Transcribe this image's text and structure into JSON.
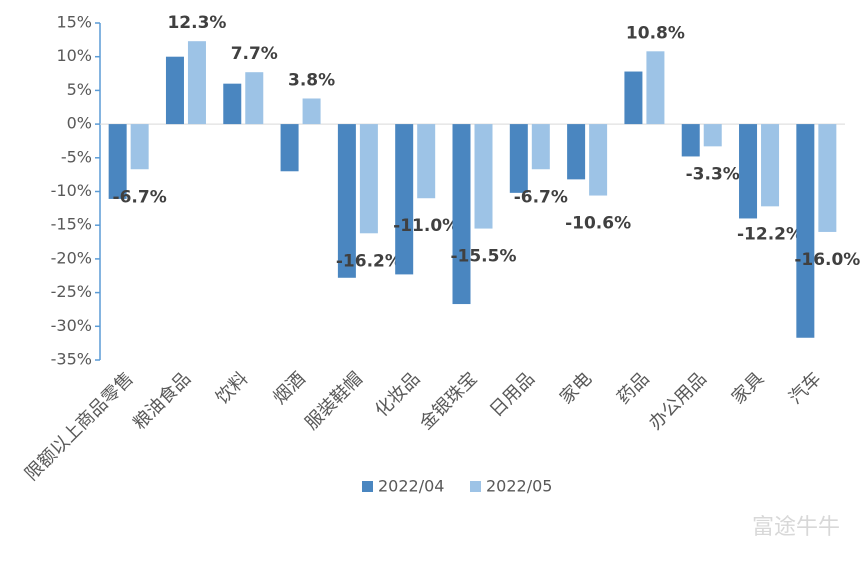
{
  "chart_data": {
    "type": "bar",
    "categories": [
      "限额以上商品零售",
      "粮油食品",
      "饮料",
      "烟酒",
      "服装鞋帽",
      "化妆品",
      "金银珠宝",
      "日用品",
      "家电",
      "药品",
      "办公用品",
      "家具",
      "汽车"
    ],
    "series": [
      {
        "name": "2022/04",
        "color": "#4a86c0",
        "values": [
          -11.1,
          10.0,
          6.0,
          -7.0,
          -22.8,
          -22.3,
          -26.7,
          -10.2,
          -8.2,
          7.8,
          -4.8,
          -14.0,
          -31.7
        ]
      },
      {
        "name": "2022/05",
        "color": "#9dc3e6",
        "values": [
          -6.7,
          12.3,
          7.7,
          3.8,
          -16.2,
          -11.0,
          -15.5,
          -6.7,
          -10.6,
          10.8,
          -3.3,
          -12.2,
          -16.0
        ],
        "value_labels": [
          "-6.7%",
          "12.3%",
          "7.7%",
          "3.8%",
          "-16.2%",
          "-11.0%",
          "-15.5%",
          "-6.7%",
          "-10.6%",
          "10.8%",
          "-3.3%",
          "-12.2%",
          "-16.0%"
        ]
      }
    ],
    "ylim": [
      -35,
      15
    ],
    "yticks": [
      {
        "value": 15,
        "label": "15%"
      },
      {
        "value": 10,
        "label": "10%"
      },
      {
        "value": 5,
        "label": "5%"
      },
      {
        "value": 0,
        "label": "0%"
      },
      {
        "value": -5,
        "label": "-5%"
      },
      {
        "value": -10,
        "label": "-10%"
      },
      {
        "value": -15,
        "label": "-15%"
      },
      {
        "value": -20,
        "label": "-20%"
      },
      {
        "value": -25,
        "label": "-25%"
      },
      {
        "value": -30,
        "label": "-30%"
      },
      {
        "value": -35,
        "label": "-35%"
      }
    ],
    "grid": false,
    "legend": "bottom",
    "watermark": "富途牛牛"
  }
}
